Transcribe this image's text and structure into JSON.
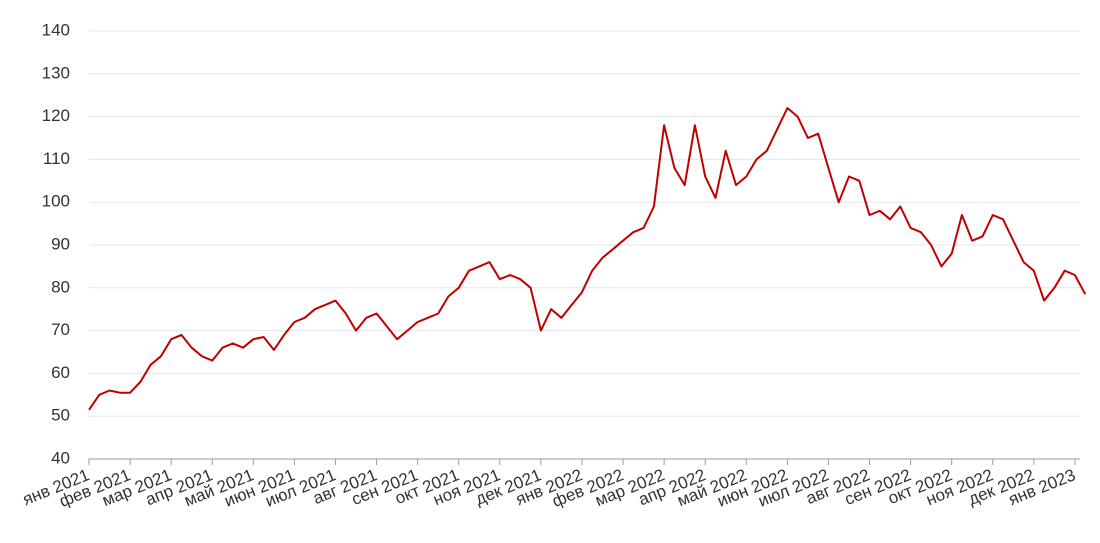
{
  "chart_data": {
    "type": "line",
    "categories": [
      "янв 2021",
      null,
      null,
      null,
      "фев 2021",
      null,
      null,
      null,
      "мар 2021",
      null,
      null,
      null,
      "апр 2021",
      null,
      null,
      null,
      "май 2021",
      null,
      null,
      null,
      "июн 2021",
      null,
      null,
      null,
      "июл 2021",
      null,
      null,
      null,
      "авг 2021",
      null,
      null,
      null,
      "сен 2021",
      null,
      null,
      null,
      "окт 2021",
      null,
      null,
      null,
      "ноя 2021",
      null,
      null,
      null,
      "дек 2021",
      null,
      null,
      null,
      "янв 2022",
      null,
      null,
      null,
      "фев 2022",
      null,
      null,
      null,
      "мар 2022",
      null,
      null,
      null,
      "апр 2022",
      null,
      null,
      null,
      "май 2022",
      null,
      null,
      null,
      "июн 2022",
      null,
      null,
      null,
      "июл 2022",
      null,
      null,
      null,
      "авг 2022",
      null,
      null,
      null,
      "сен 2022",
      null,
      null,
      null,
      "окт 2022",
      null,
      null,
      null,
      "ноя 2022",
      null,
      null,
      null,
      "дек 2022",
      null,
      null,
      null,
      "янв 2023",
      null
    ],
    "series": [
      {
        "color": "#c00000",
        "values": [
          51.5,
          55,
          56,
          55.5,
          55.5,
          58,
          62,
          64,
          68,
          69,
          66,
          64,
          63,
          66,
          67,
          66,
          68,
          68.5,
          65.5,
          69,
          72,
          73,
          75,
          76,
          77,
          74,
          70,
          73,
          74,
          71,
          68,
          70,
          72,
          73,
          74,
          78,
          80,
          84,
          85,
          86,
          82,
          83,
          82,
          80,
          70,
          75,
          73,
          76,
          79,
          84,
          87,
          89,
          91,
          93,
          94,
          99,
          118,
          108,
          104,
          118,
          106,
          101,
          112,
          104,
          106,
          110,
          112,
          117,
          122,
          120,
          115,
          116,
          108,
          100,
          106,
          105,
          97,
          98,
          96,
          99,
          94,
          93,
          90,
          85,
          88,
          97,
          91,
          92,
          97,
          96,
          91,
          86,
          84,
          77,
          80,
          84,
          83,
          78.5
        ]
      }
    ],
    "ylim": [
      40,
      140
    ],
    "yticks": [
      40,
      50,
      60,
      70,
      80,
      90,
      100,
      110,
      120,
      130,
      140
    ],
    "grid": true
  }
}
